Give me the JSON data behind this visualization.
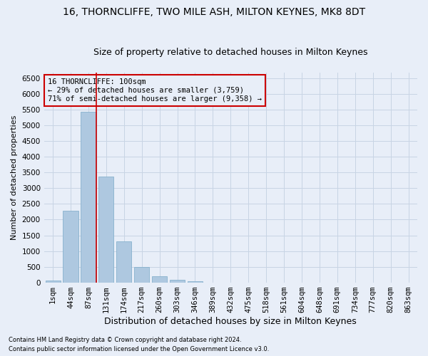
{
  "title": "16, THORNCLIFFE, TWO MILE ASH, MILTON KEYNES, MK8 8DT",
  "subtitle": "Size of property relative to detached houses in Milton Keynes",
  "xlabel": "Distribution of detached houses by size in Milton Keynes",
  "ylabel": "Number of detached properties",
  "footnote1": "Contains HM Land Registry data © Crown copyright and database right 2024.",
  "footnote2": "Contains public sector information licensed under the Open Government Licence v3.0.",
  "categories": [
    "1sqm",
    "44sqm",
    "87sqm",
    "131sqm",
    "174sqm",
    "217sqm",
    "260sqm",
    "303sqm",
    "346sqm",
    "389sqm",
    "432sqm",
    "475sqm",
    "518sqm",
    "561sqm",
    "604sqm",
    "648sqm",
    "691sqm",
    "734sqm",
    "777sqm",
    "820sqm",
    "863sqm"
  ],
  "values": [
    50,
    2280,
    5440,
    3380,
    1300,
    490,
    185,
    80,
    25,
    0,
    0,
    0,
    0,
    0,
    0,
    0,
    0,
    0,
    0,
    0,
    0
  ],
  "bar_color": "#aec8e0",
  "bar_edge_color": "#7aaac8",
  "grid_color": "#c8d4e4",
  "bg_color": "#e8eef8",
  "annotation_box_color": "#cc0000",
  "vline_color": "#cc0000",
  "vline_x_index": 2,
  "annotation_title": "16 THORNCLIFFE: 100sqm",
  "annotation_line1": "← 29% of detached houses are smaller (3,759)",
  "annotation_line2": "71% of semi-detached houses are larger (9,358) →",
  "ylim": [
    0,
    6700
  ],
  "yticks": [
    0,
    500,
    1000,
    1500,
    2000,
    2500,
    3000,
    3500,
    4000,
    4500,
    5000,
    5500,
    6000,
    6500
  ],
  "title_fontsize": 10,
  "subtitle_fontsize": 9,
  "ylabel_fontsize": 8,
  "xlabel_fontsize": 9,
  "tick_fontsize": 7.5,
  "annotation_fontsize": 7.5,
  "footnote_fontsize": 6
}
